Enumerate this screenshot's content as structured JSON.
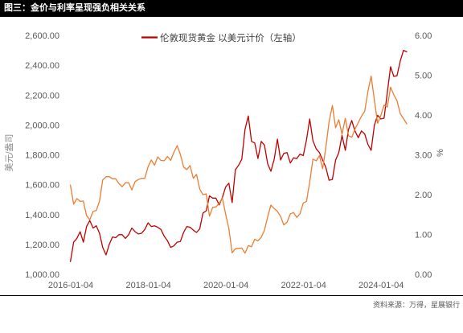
{
  "footer": {
    "source": "资料来源：万得，星展银行"
  },
  "colors": {
    "title_bg": "#000000",
    "title_text": "#FFFFFF"
  },
  "chart_data": {
    "type": "line",
    "title": "图三：金价与利率呈现强负相关关系",
    "grid": false,
    "legend": {
      "placement": "top-center"
    },
    "x_axis": {
      "type": "date",
      "range": [
        "2016-01-04",
        "2024-09"
      ],
      "tick_labels": [
        "2016-01-04",
        "2018-01-04",
        "2020-01-04",
        "2022-01-04",
        "2024-01-04"
      ]
    },
    "y_left": {
      "label": "美元/盎司",
      "range": [
        1000,
        2600
      ],
      "ticks": [
        2600,
        2400,
        2200,
        2000,
        1800,
        1600,
        1400,
        1200,
        1000
      ],
      "tick_labels": [
        "2,600.00",
        "2,400.00",
        "2,200.00",
        "2,000.00",
        "1,800.00",
        "1,600.00",
        "1,400.00",
        "1,200.00",
        "1,000.00"
      ]
    },
    "y_right": {
      "label": "%",
      "range": [
        0,
        6
      ],
      "ticks": [
        6,
        5,
        4,
        3,
        2,
        1,
        0
      ],
      "tick_labels": [
        "6.00",
        "5.00",
        "4.00",
        "3.00",
        "2.00",
        "1.00",
        "0.00"
      ]
    },
    "dates": [
      "2016-01",
      "2016-02",
      "2016-03",
      "2016-04",
      "2016-05",
      "2016-06",
      "2016-07",
      "2016-08",
      "2016-09",
      "2016-10",
      "2016-11",
      "2016-12",
      "2017-01",
      "2017-02",
      "2017-03",
      "2017-04",
      "2017-05",
      "2017-06",
      "2017-07",
      "2017-08",
      "2017-09",
      "2017-10",
      "2017-11",
      "2017-12",
      "2018-01",
      "2018-02",
      "2018-03",
      "2018-04",
      "2018-05",
      "2018-06",
      "2018-07",
      "2018-08",
      "2018-09",
      "2018-10",
      "2018-11",
      "2018-12",
      "2019-01",
      "2019-02",
      "2019-03",
      "2019-04",
      "2019-05",
      "2019-06",
      "2019-07",
      "2019-08",
      "2019-09",
      "2019-10",
      "2019-11",
      "2019-12",
      "2020-01",
      "2020-02",
      "2020-03",
      "2020-04",
      "2020-05",
      "2020-06",
      "2020-07",
      "2020-08",
      "2020-09",
      "2020-10",
      "2020-11",
      "2020-12",
      "2021-01",
      "2021-02",
      "2021-03",
      "2021-04",
      "2021-05",
      "2021-06",
      "2021-07",
      "2021-08",
      "2021-09",
      "2021-10",
      "2021-11",
      "2021-12",
      "2022-01",
      "2022-02",
      "2022-03",
      "2022-04",
      "2022-05",
      "2022-06",
      "2022-07",
      "2022-08",
      "2022-09",
      "2022-10",
      "2022-11",
      "2022-12",
      "2023-01",
      "2023-02",
      "2023-03",
      "2023-04",
      "2023-05",
      "2023-06",
      "2023-07",
      "2023-08",
      "2023-09",
      "2023-10",
      "2023-11",
      "2023-12",
      "2024-01",
      "2024-02",
      "2024-03",
      "2024-04",
      "2024-05",
      "2024-06",
      "2024-07",
      "2024-08",
      "2024-09"
    ],
    "series": [
      {
        "name": "伦敦现货黄金 以美元计价（左轴）",
        "axis": "left",
        "color": "#C00000",
        "values": [
          1085,
          1215,
          1240,
          1285,
          1215,
          1320,
          1360,
          1310,
          1325,
          1275,
          1180,
          1130,
          1200,
          1250,
          1245,
          1265,
          1265,
          1240,
          1265,
          1310,
          1285,
          1270,
          1275,
          1300,
          1345,
          1320,
          1325,
          1315,
          1300,
          1255,
          1225,
          1180,
          1190,
          1215,
          1220,
          1280,
          1320,
          1315,
          1295,
          1280,
          1305,
          1410,
          1425,
          1525,
          1510,
          1510,
          1465,
          1515,
          1585,
          1610,
          1480,
          1700,
          1730,
          1770,
          1970,
          2060,
          1890,
          1880,
          1775,
          1890,
          1865,
          1740,
          1690,
          1770,
          1905,
          1765,
          1810,
          1815,
          1745,
          1780,
          1775,
          1805,
          1795,
          1900,
          2040,
          1895,
          1840,
          1815,
          1765,
          1715,
          1630,
          1635,
          1765,
          1815,
          1930,
          1830,
          1970,
          2030,
          1960,
          1915,
          1960,
          1940,
          1870,
          1830,
          2000,
          2065,
          2040,
          2045,
          2220,
          2390,
          2325,
          2330,
          2430,
          2500,
          2490
        ]
      },
      {
        "axis": "right",
        "color": "#ED7D31",
        "values": [
          2.24,
          1.76,
          1.9,
          1.83,
          1.84,
          1.47,
          1.37,
          1.58,
          1.6,
          1.84,
          2.37,
          2.45,
          2.45,
          2.4,
          2.4,
          2.28,
          2.2,
          2.3,
          2.3,
          2.12,
          2.33,
          2.38,
          2.41,
          2.41,
          2.7,
          2.87,
          2.74,
          2.95,
          2.86,
          2.85,
          2.96,
          2.86,
          3.06,
          3.23,
          3.01,
          2.69,
          2.63,
          2.73,
          2.41,
          2.51,
          2.14,
          2.0,
          2.02,
          1.46,
          1.68,
          1.69,
          1.78,
          1.92,
          1.51,
          1.15,
          0.54,
          0.64,
          0.65,
          0.66,
          0.53,
          0.72,
          0.69,
          0.88,
          0.84,
          0.93,
          1.11,
          1.44,
          1.74,
          1.65,
          1.58,
          1.45,
          1.24,
          1.31,
          1.52,
          1.55,
          1.43,
          1.52,
          1.79,
          1.83,
          2.32,
          2.89,
          2.85,
          2.98,
          2.65,
          3.19,
          3.83,
          4.24,
          3.68,
          3.88,
          3.52,
          3.92,
          3.48,
          3.44,
          3.64,
          3.81,
          3.97,
          4.09,
          4.59,
          4.98,
          4.37,
          3.79,
          3.99,
          4.25,
          4.2,
          4.7,
          4.51,
          4.36,
          4.03,
          3.91,
          3.78
        ]
      }
    ]
  }
}
